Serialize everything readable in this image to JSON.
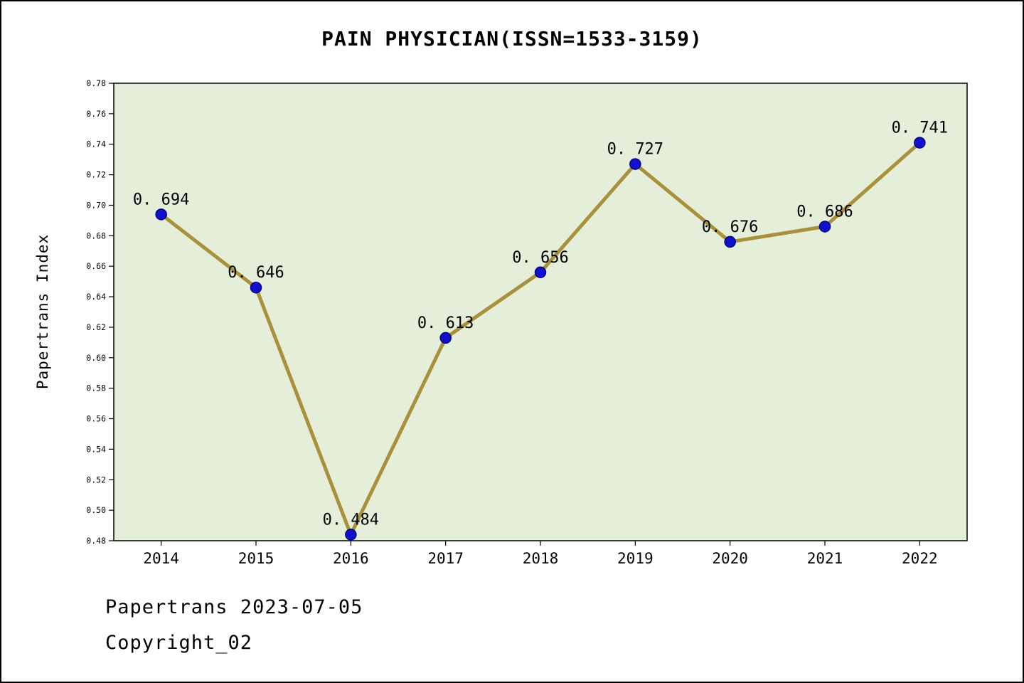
{
  "title": "PAIN PHYSICIAN(ISSN=1533-3159)",
  "ylabel": "Papertrans Index",
  "footer": {
    "line1": "Papertrans 2023-07-05",
    "line2": "Copyright_02"
  },
  "chart_data": {
    "type": "line",
    "title": "PAIN PHYSICIAN(ISSN=1533-3159)",
    "xlabel": "",
    "ylabel": "Papertrans Index",
    "categories": [
      "2014",
      "2015",
      "2016",
      "2017",
      "2018",
      "2019",
      "2020",
      "2021",
      "2022"
    ],
    "values": [
      0.694,
      0.646,
      0.484,
      0.613,
      0.656,
      0.727,
      0.676,
      0.686,
      0.741
    ],
    "point_labels": [
      "0. 694",
      "0. 646",
      "0. 484",
      "0. 613",
      "0. 656",
      "0. 727",
      "0. 676",
      "0. 686",
      "0. 741"
    ],
    "ylim": [
      0.48,
      0.78
    ],
    "ytick_step": 0.02,
    "grid": false,
    "legend_position": "none",
    "colors": {
      "line": "#a8913a",
      "marker_fill": "#1111cc",
      "marker_edge": "#000088",
      "plot_bg": "#e4eed8",
      "axis": "#000000",
      "text": "#000000"
    }
  }
}
